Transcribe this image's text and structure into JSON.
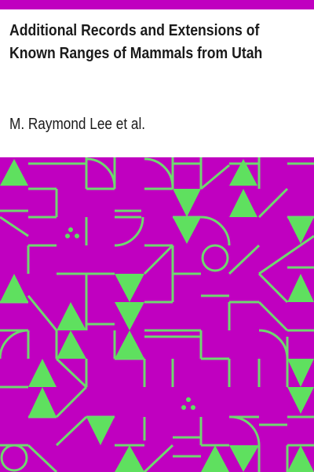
{
  "book": {
    "title": "Additional Records and Extensions of Known Ranges of Mammals from Utah",
    "author": "M. Raymond Lee et al."
  },
  "colors": {
    "accent": "#c000c0",
    "pattern_lines": "#6fd86f",
    "pattern_triangles": "#5fe05f",
    "text": "#1a1a1a",
    "background": "#ffffff"
  }
}
